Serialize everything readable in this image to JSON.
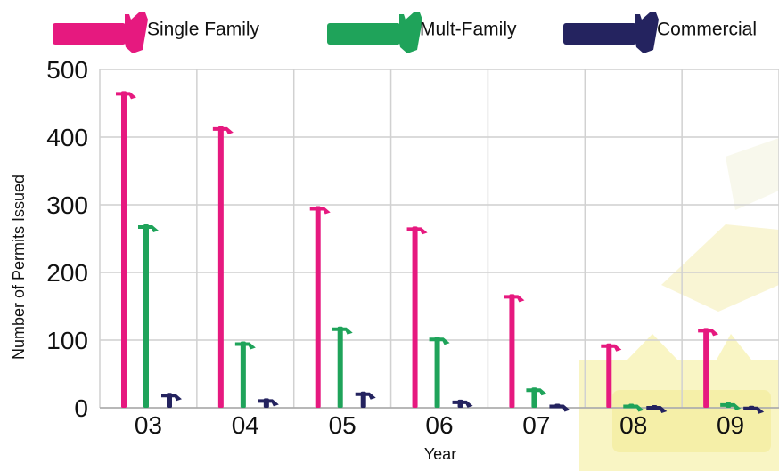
{
  "chart_data": {
    "type": "bar",
    "title": "",
    "xlabel": "Year",
    "ylabel": "Number of Permits Issued",
    "categories": [
      "03",
      "04",
      "05",
      "06",
      "07",
      "08",
      "09"
    ],
    "ylim": [
      0,
      500
    ],
    "y_ticks": [
      0,
      100,
      200,
      300,
      400,
      500
    ],
    "grid": true,
    "legend_position": "top",
    "series": [
      {
        "name": "Single Family",
        "color": "#e6197f",
        "values": [
          468,
          416,
          298,
          268,
          168,
          95,
          118
        ]
      },
      {
        "name": "Mult-Family",
        "color": "#1fa35a",
        "values": [
          271,
          98,
          120,
          105,
          30,
          6,
          8
        ]
      },
      {
        "name": "Commercial",
        "color": "#24235f",
        "values": [
          22,
          14,
          24,
          12,
          6,
          4,
          3
        ]
      }
    ]
  }
}
